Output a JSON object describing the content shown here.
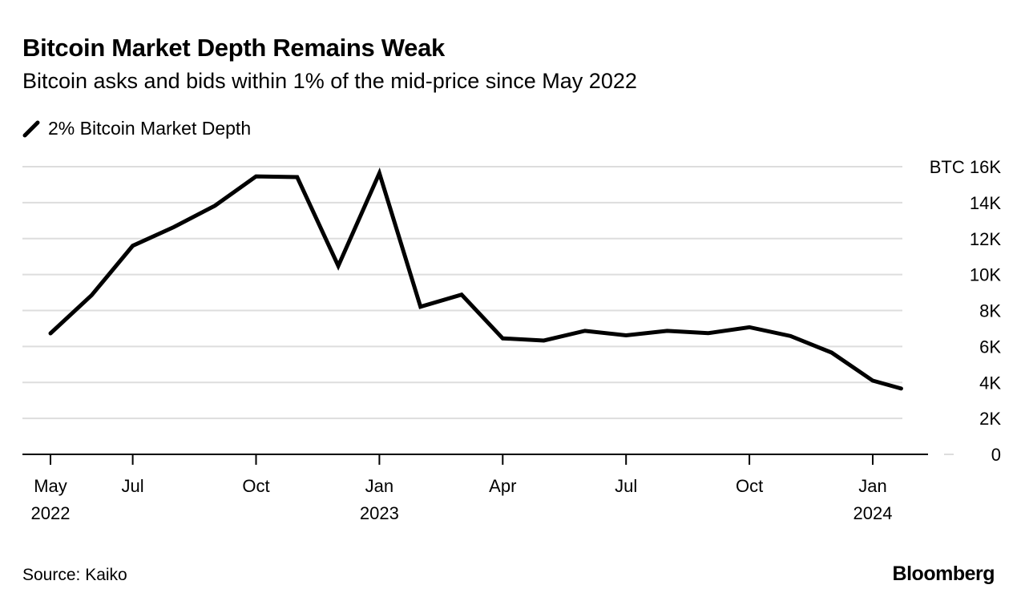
{
  "title": "Bitcoin Market Depth Remains Weak",
  "subtitle": "Bitcoin asks and bids within 1% of the mid-price since May 2022",
  "source": "Source: Kaiko",
  "brand": "Bloomberg",
  "chart_data": {
    "type": "line",
    "title": "Bitcoin Market Depth Remains Weak",
    "subtitle": "Bitcoin asks and bids within 1% of the mid-price since May 2022",
    "legend_position": "top-left",
    "grid": true,
    "line_color": "#000000",
    "grid_color": "#dddddd",
    "ylim": [
      0,
      16000
    ],
    "y_unit": "BTC",
    "y_ticks": [
      {
        "value": 0,
        "label": "0"
      },
      {
        "value": 2000,
        "label": "2K"
      },
      {
        "value": 4000,
        "label": "4K"
      },
      {
        "value": 6000,
        "label": "6K"
      },
      {
        "value": 8000,
        "label": "8K"
      },
      {
        "value": 10000,
        "label": "10K"
      },
      {
        "value": 12000,
        "label": "12K"
      },
      {
        "value": 14000,
        "label": "14K"
      },
      {
        "value": 16000,
        "label": "BTC 16K"
      }
    ],
    "x_ticks": [
      {
        "date": "2022-05-01",
        "label": "May",
        "year": "2022"
      },
      {
        "date": "2022-07-01",
        "label": "Jul",
        "year": ""
      },
      {
        "date": "2022-10-01",
        "label": "Oct",
        "year": ""
      },
      {
        "date": "2023-01-01",
        "label": "Jan",
        "year": "2023"
      },
      {
        "date": "2023-04-01",
        "label": "Apr",
        "year": ""
      },
      {
        "date": "2023-07-01",
        "label": "Jul",
        "year": ""
      },
      {
        "date": "2023-10-01",
        "label": "Oct",
        "year": ""
      },
      {
        "date": "2024-01-01",
        "label": "Jan",
        "year": "2024"
      }
    ],
    "series": [
      {
        "name": "2% Bitcoin Market Depth",
        "x": [
          "2022-05-01",
          "2022-06-01",
          "2022-07-01",
          "2022-08-01",
          "2022-09-01",
          "2022-10-01",
          "2022-11-01",
          "2022-12-01",
          "2023-01-01",
          "2023-02-01",
          "2023-03-01",
          "2023-04-01",
          "2023-05-01",
          "2023-06-01",
          "2023-07-01",
          "2023-08-01",
          "2023-09-01",
          "2023-10-01",
          "2023-11-01",
          "2023-12-01",
          "2024-01-01",
          "2024-01-22"
        ],
        "y": [
          6730,
          8850,
          11600,
          12640,
          13830,
          15460,
          15420,
          10480,
          15640,
          8210,
          8880,
          6450,
          6330,
          6870,
          6620,
          6870,
          6740,
          7070,
          6580,
          5660,
          4100,
          3660
        ]
      }
    ]
  }
}
